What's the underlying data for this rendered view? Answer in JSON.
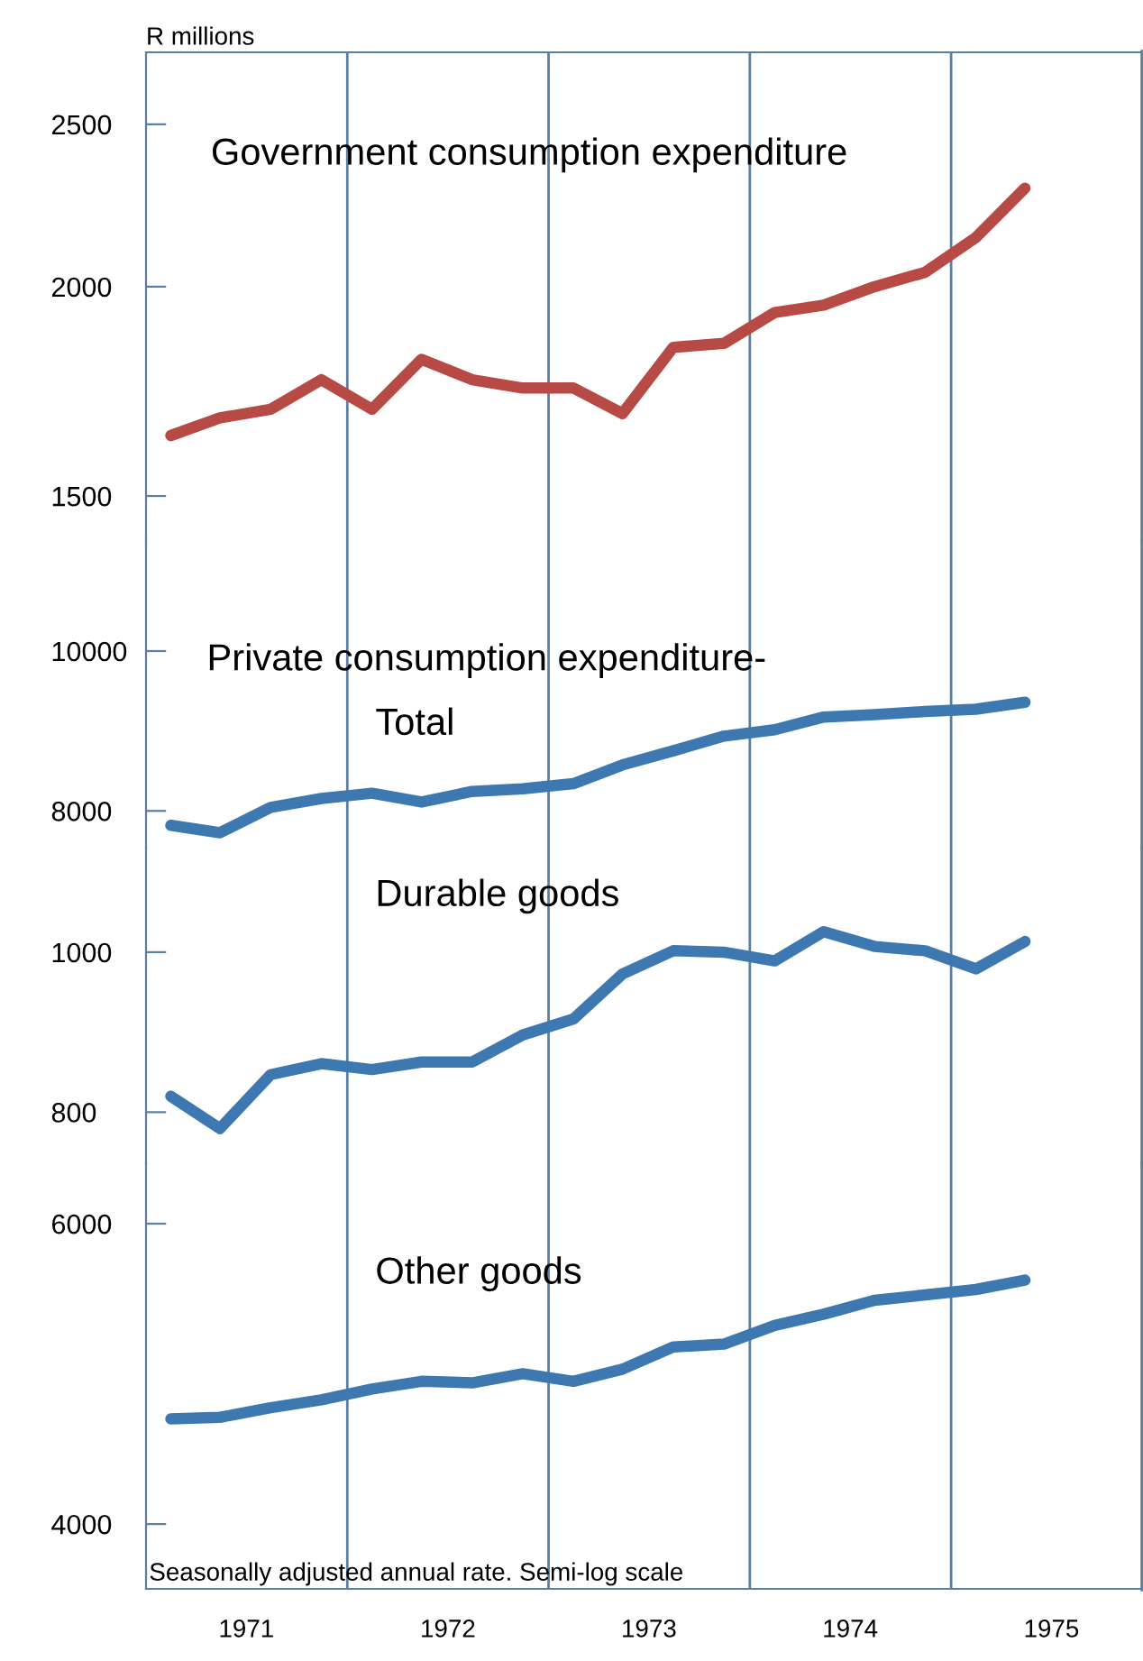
{
  "chart_data": [
    {
      "type": "line",
      "title": "Government consumption expenditure",
      "ylabel": "R millions",
      "x": [
        "1971-02-15",
        "1971-05-15",
        "1971-08-15",
        "1971-11-15",
        "1972-02-15",
        "1972-05-15",
        "1972-08-15",
        "1972-11-15",
        "1973-02-15",
        "1973-05-15",
        "1973-08-15",
        "1973-11-15",
        "1974-02-15",
        "1974-05-15",
        "1974-08-15",
        "1974-11-15",
        "1975-02-15",
        "1975-05-15"
      ],
      "series": [
        {
          "color": "#b84a45",
          "values": [
            1630,
            1670,
            1690,
            1760,
            1690,
            1810,
            1760,
            1740,
            1740,
            1680,
            1840,
            1850,
            1930,
            1950,
            2000,
            2040,
            2140,
            2290
          ]
        }
      ],
      "log": true,
      "xlim": [
        "1971-01-01",
        "1975-12-15"
      ],
      "ylim": [
        1410,
        2760
      ],
      "yticks": [
        1500,
        2000,
        2500
      ],
      "tick_labels": "y",
      "grid": false,
      "legend": false,
      "ref_lines": [
        {
          "axis": "x",
          "value": "1972-01-01",
          "color": "#5a7fa0"
        },
        {
          "axis": "x",
          "value": "1973-01-01",
          "color": "#5a7fa0"
        },
        {
          "axis": "x",
          "value": "1974-01-01",
          "color": "#5a7fa0"
        },
        {
          "axis": "x",
          "value": "1975-01-01",
          "color": "#5a7fa0"
        }
      ]
    },
    {
      "type": "line",
      "title": "Private consumption expenditure-",
      "x": [
        "1971-02-15",
        "1971-05-15",
        "1971-08-15",
        "1971-11-15",
        "1972-02-15",
        "1972-05-15",
        "1972-08-15",
        "1972-11-15",
        "1973-02-15",
        "1973-05-15",
        "1973-08-15",
        "1973-11-15",
        "1974-02-15",
        "1974-05-15",
        "1974-08-15",
        "1974-11-15",
        "1975-02-15",
        "1975-05-15"
      ],
      "series": [
        {
          "name": "Total",
          "color": "#3d78b0",
          "values": [
            7840,
            7760,
            8040,
            8140,
            8200,
            8100,
            8220,
            8250,
            8310,
            8530,
            8700,
            8880,
            8960,
            9120,
            9150,
            9190,
            9220,
            9310
          ]
        }
      ],
      "log": true,
      "xlim": [
        "1971-01-01",
        "1975-12-15"
      ],
      "ylim": [
        7600,
        11660
      ],
      "yticks": [
        8000,
        10000
      ],
      "tick_labels": "y",
      "grid": false,
      "legend": false,
      "ref_lines": [
        {
          "axis": "x",
          "value": "1972-01-01",
          "color": "#5a7fa0"
        },
        {
          "axis": "x",
          "value": "1973-01-01",
          "color": "#5a7fa0"
        },
        {
          "axis": "x",
          "value": "1974-01-01",
          "color": "#5a7fa0"
        },
        {
          "axis": "x",
          "value": "1975-01-01",
          "color": "#5a7fa0"
        }
      ]
    },
    {
      "type": "line",
      "x": [
        "1971-02-15",
        "1971-05-15",
        "1971-08-15",
        "1971-11-15",
        "1972-02-15",
        "1972-05-15",
        "1972-08-15",
        "1972-11-15",
        "1973-02-15",
        "1973-05-15",
        "1973-08-15",
        "1973-11-15",
        "1974-02-15",
        "1974-05-15",
        "1974-08-15",
        "1974-11-15",
        "1975-02-15",
        "1975-05-15"
      ],
      "series": [
        {
          "name": "Durable goods",
          "color": "#3d78b0",
          "values": [
            818,
            782,
            843,
            856,
            849,
            858,
            858,
            891,
            911,
            970,
            1002,
            1000,
            988,
            1029,
            1008,
            1002,
            977,
            1015
          ]
        }
      ],
      "log": true,
      "xlim": [
        "1971-01-01",
        "1975-12-15"
      ],
      "ylim": [
        745,
        1157
      ],
      "yticks": [
        800,
        1000
      ],
      "tick_labels": "y",
      "grid": false,
      "legend": false,
      "ref_lines": [
        {
          "axis": "x",
          "value": "1972-01-01",
          "color": "#5a7fa0"
        },
        {
          "axis": "x",
          "value": "1973-01-01",
          "color": "#5a7fa0"
        },
        {
          "axis": "x",
          "value": "1974-01-01",
          "color": "#5a7fa0"
        },
        {
          "axis": "x",
          "value": "1975-01-01",
          "color": "#5a7fa0"
        }
      ]
    },
    {
      "type": "line",
      "annotations": [
        "Seasonally adjusted annual rate. Semi-log scale"
      ],
      "x": [
        "1971-02-15",
        "1971-05-15",
        "1971-08-15",
        "1971-11-15",
        "1972-02-15",
        "1972-05-15",
        "1972-08-15",
        "1972-11-15",
        "1973-02-15",
        "1973-05-15",
        "1973-08-15",
        "1973-11-15",
        "1974-02-15",
        "1974-05-15",
        "1974-08-15",
        "1974-11-15",
        "1975-02-15",
        "1975-05-15"
      ],
      "series": [
        {
          "name": "Other goods",
          "color": "#3d78b0",
          "values": [
            4610,
            4620,
            4680,
            4730,
            4800,
            4850,
            4840,
            4900,
            4850,
            4930,
            5080,
            5100,
            5230,
            5310,
            5410,
            5450,
            5490,
            5560
          ]
        }
      ],
      "log": true,
      "xlim": [
        "1971-01-01",
        "1975-12-15"
      ],
      "ylim": [
        3665,
        6510
      ],
      "yticks": [
        4000,
        6000
      ],
      "xticks": [
        {
          "value": "1971-07-02",
          "label": "1971"
        },
        {
          "value": "1972-07-02",
          "label": "1972"
        },
        {
          "value": "1973-07-02",
          "label": "1973"
        },
        {
          "value": "1974-07-02",
          "label": "1974"
        },
        {
          "value": "1975-07-02",
          "label": "1975"
        }
      ],
      "grid": false,
      "legend": false,
      "ref_lines": [
        {
          "axis": "x",
          "value": "1972-01-01",
          "color": "#5a7fa0"
        },
        {
          "axis": "x",
          "value": "1973-01-01",
          "color": "#5a7fa0"
        },
        {
          "axis": "x",
          "value": "1974-01-01",
          "color": "#5a7fa0"
        },
        {
          "axis": "x",
          "value": "1975-01-01",
          "color": "#5a7fa0"
        }
      ]
    }
  ]
}
